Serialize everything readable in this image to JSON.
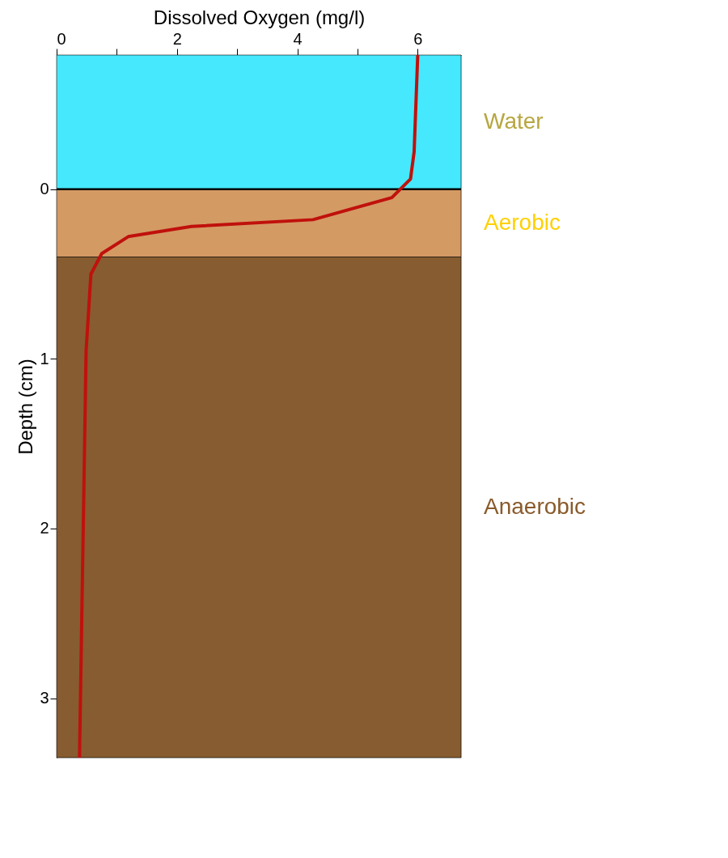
{
  "chart_data": {
    "type": "line",
    "xlabel": "Dissolved Oxygen (mg/l)",
    "ylabel": "Depth (cm)",
    "xlim": [
      0,
      6.72
    ],
    "xticks": [
      0,
      {
        "value": 1,
        "label": null
      },
      2,
      {
        "value": 3,
        "label": null
      },
      4,
      {
        "value": 5,
        "label": null
      },
      6
    ],
    "ylim": [
      3.35,
      -0.79
    ],
    "yticks": [
      0,
      1,
      2,
      3
    ],
    "marker": "none",
    "line_style": "solid",
    "bands": [
      {
        "axis": "y",
        "from": -0.79,
        "to": 0,
        "label": "Water",
        "color": "#45e8fc"
      },
      {
        "axis": "y",
        "from": 0,
        "to": 0.4,
        "label": "Aerobic",
        "color": "#d49a64"
      },
      {
        "axis": "y",
        "from": 0.4,
        "to": 3.35,
        "label": "Anaerobic",
        "color": "#875c30"
      }
    ],
    "ref_lines": [
      {
        "axis": "y",
        "value": 0,
        "color": "#000000"
      }
    ],
    "series": [
      {
        "color": "#c0110c",
        "x": [
          6.0,
          5.94,
          5.88,
          5.57,
          4.26,
          2.24,
          1.19,
          0.75,
          0.57,
          0.49,
          0.38
        ],
        "values": [
          -0.79,
          -0.22,
          -0.06,
          0.05,
          0.18,
          0.22,
          0.28,
          0.38,
          0.5,
          0.95,
          3.35
        ]
      }
    ]
  }
}
